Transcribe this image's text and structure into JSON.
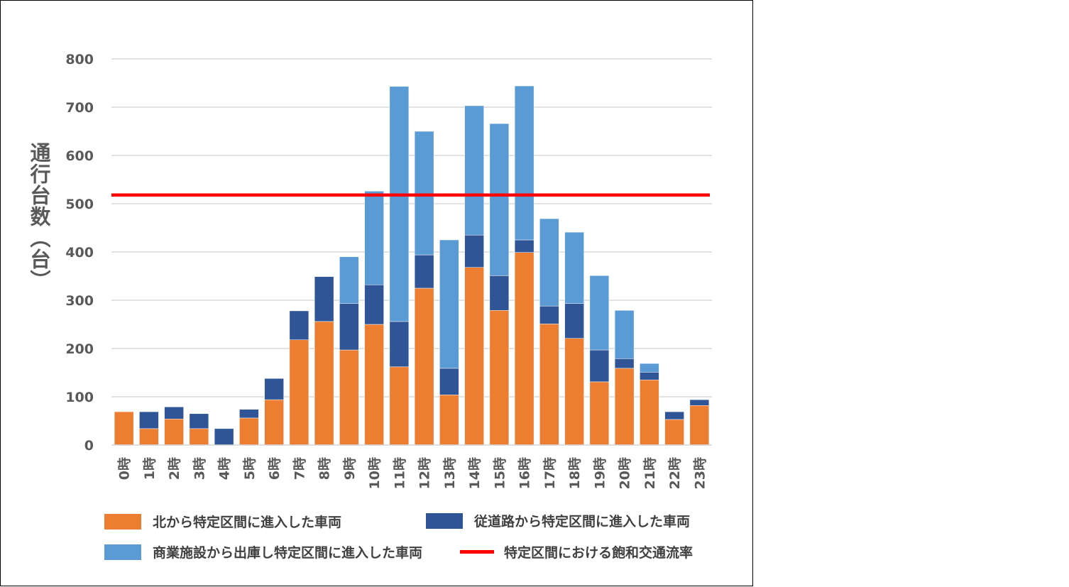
{
  "chart_data": {
    "type": "bar",
    "stacked": true,
    "title": "",
    "xlabel": "",
    "ylabel": "通行台数（台）",
    "ylim": [
      0,
      800
    ],
    "yticks": [
      0,
      100,
      200,
      300,
      400,
      500,
      600,
      700,
      800
    ],
    "grid": true,
    "legend_position": "bottom",
    "categories": [
      "0時",
      "1時",
      "2時",
      "3時",
      "4時",
      "5時",
      "6時",
      "7時",
      "8時",
      "9時",
      "10時",
      "11時",
      "12時",
      "13時",
      "14時",
      "15時",
      "16時",
      "17時",
      "18時",
      "19時",
      "20時",
      "21時",
      "22時",
      "23時"
    ],
    "series": [
      {
        "name": "北から特定区間に進入した車両",
        "color": "#ed7d31",
        "values": [
          69,
          34,
          54,
          34,
          0,
          56,
          94,
          218,
          256,
          197,
          250,
          162,
          325,
          104,
          368,
          279,
          399,
          251,
          221,
          131,
          159,
          135,
          53,
          82
        ]
      },
      {
        "name": "従道路から特定区間に進入した車両",
        "color": "#2f5597",
        "values": [
          0,
          35,
          25,
          31,
          34,
          18,
          44,
          60,
          93,
          96,
          82,
          94,
          69,
          55,
          67,
          72,
          26,
          37,
          72,
          66,
          20,
          16,
          16,
          12
        ]
      },
      {
        "name": "商業施設から出庫し特定区間に進入した車両",
        "color": "#5b9bd5",
        "values": [
          0,
          0,
          0,
          0,
          0,
          0,
          0,
          0,
          0,
          97,
          194,
          487,
          256,
          266,
          268,
          315,
          319,
          181,
          148,
          154,
          100,
          18,
          0,
          0
        ]
      }
    ],
    "reference_line": {
      "name": "特定区間における飽和交通流率",
      "color": "#ff0000",
      "value": 518
    }
  }
}
